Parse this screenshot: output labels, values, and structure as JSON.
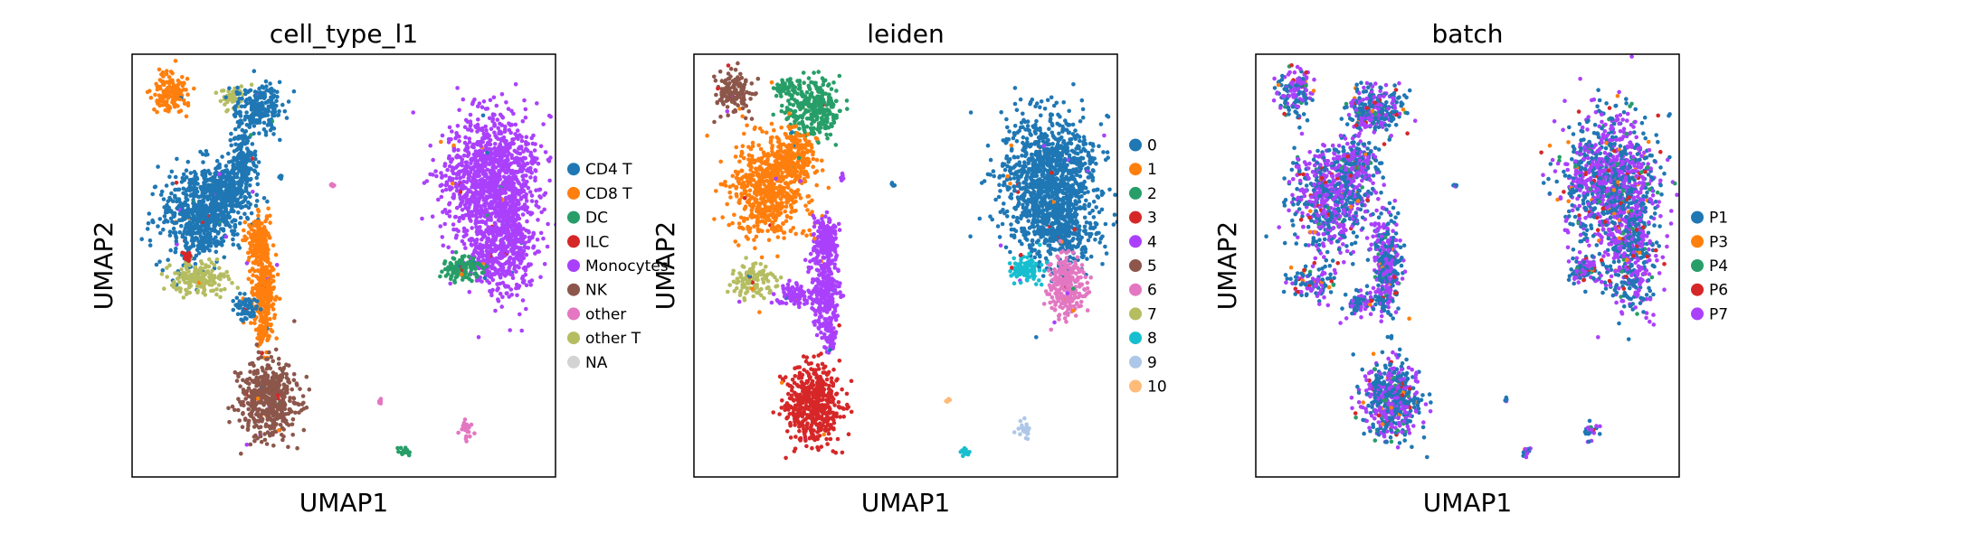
{
  "chart_data": [
    {
      "type": "scatter",
      "title": "cell_type_l1",
      "xlabel": "UMAP1",
      "ylabel": "UMAP2",
      "grid": false,
      "legend_position": "right",
      "legend": [
        {
          "label": "CD4 T",
          "color": "#1f77b4"
        },
        {
          "label": "CD8 T",
          "color": "#ff7f0e"
        },
        {
          "label": "DC",
          "color": "#279e68"
        },
        {
          "label": "ILC",
          "color": "#d62728"
        },
        {
          "label": "Monocytes",
          "color": "#aa40fc"
        },
        {
          "label": "NK",
          "color": "#8c564b"
        },
        {
          "label": "other",
          "color": "#e377c2"
        },
        {
          "label": "other T",
          "color": "#b5bd61"
        },
        {
          "label": "NA",
          "color": "#d3d3d3"
        }
      ],
      "clusters": [
        {
          "group": "CD8 T",
          "x": 0.09,
          "y": 0.91,
          "rx": 0.04,
          "ry": 0.045,
          "n": 150
        },
        {
          "group": "other T",
          "x": 0.23,
          "y": 0.9,
          "rx": 0.025,
          "ry": 0.025,
          "n": 40
        },
        {
          "group": "CD4 T",
          "x": 0.3,
          "y": 0.87,
          "rx": 0.05,
          "ry": 0.05,
          "n": 220
        },
        {
          "group": "CD4 T",
          "x": 0.26,
          "y": 0.74,
          "rx": 0.03,
          "ry": 0.09,
          "n": 200
        },
        {
          "group": "CD4 T",
          "x": 0.16,
          "y": 0.62,
          "rx": 0.085,
          "ry": 0.1,
          "n": 650
        },
        {
          "group": "CD4 T",
          "x": 0.22,
          "y": 0.68,
          "rx": 0.05,
          "ry": 0.06,
          "n": 250
        },
        {
          "group": "CD8 T",
          "x": 0.3,
          "y": 0.56,
          "rx": 0.025,
          "ry": 0.05,
          "n": 180
        },
        {
          "group": "CD8 T",
          "x": 0.31,
          "y": 0.44,
          "rx": 0.025,
          "ry": 0.08,
          "n": 260
        },
        {
          "group": "CD8 T",
          "x": 0.31,
          "y": 0.35,
          "rx": 0.015,
          "ry": 0.04,
          "n": 80
        },
        {
          "group": "CD4 T",
          "x": 0.27,
          "y": 0.4,
          "rx": 0.025,
          "ry": 0.025,
          "n": 70
        },
        {
          "group": "other T",
          "x": 0.16,
          "y": 0.47,
          "rx": 0.06,
          "ry": 0.035,
          "n": 160
        },
        {
          "group": "ILC",
          "x": 0.13,
          "y": 0.52,
          "rx": 0.015,
          "ry": 0.012,
          "n": 20
        },
        {
          "group": "NK",
          "x": 0.32,
          "y": 0.18,
          "rx": 0.06,
          "ry": 0.08,
          "n": 520
        },
        {
          "group": "Monocytes",
          "x": 0.85,
          "y": 0.7,
          "rx": 0.1,
          "ry": 0.14,
          "n": 1100
        },
        {
          "group": "Monocytes",
          "x": 0.89,
          "y": 0.55,
          "rx": 0.05,
          "ry": 0.12,
          "n": 420
        },
        {
          "group": "Monocytes",
          "x": 0.83,
          "y": 0.52,
          "rx": 0.04,
          "ry": 0.05,
          "n": 120
        },
        {
          "group": "DC",
          "x": 0.78,
          "y": 0.49,
          "rx": 0.035,
          "ry": 0.025,
          "n": 110
        },
        {
          "group": "CD4 T",
          "x": 0.35,
          "y": 0.71,
          "rx": 0.005,
          "ry": 0.008,
          "n": 6
        },
        {
          "group": "other",
          "x": 0.47,
          "y": 0.69,
          "rx": 0.006,
          "ry": 0.004,
          "n": 6
        },
        {
          "group": "other",
          "x": 0.59,
          "y": 0.18,
          "rx": 0.006,
          "ry": 0.006,
          "n": 6
        },
        {
          "group": "other",
          "x": 0.79,
          "y": 0.11,
          "rx": 0.015,
          "ry": 0.02,
          "n": 25
        },
        {
          "group": "DC",
          "x": 0.64,
          "y": 0.06,
          "rx": 0.01,
          "ry": 0.01,
          "n": 14
        }
      ]
    },
    {
      "type": "scatter",
      "title": "leiden",
      "xlabel": "UMAP1",
      "ylabel": "UMAP2",
      "grid": false,
      "legend_position": "right",
      "legend": [
        {
          "label": "0",
          "color": "#1f77b4"
        },
        {
          "label": "1",
          "color": "#ff7f0e"
        },
        {
          "label": "2",
          "color": "#279e68"
        },
        {
          "label": "3",
          "color": "#d62728"
        },
        {
          "label": "4",
          "color": "#aa40fc"
        },
        {
          "label": "5",
          "color": "#8c564b"
        },
        {
          "label": "6",
          "color": "#e377c2"
        },
        {
          "label": "7",
          "color": "#b5bd61"
        },
        {
          "label": "8",
          "color": "#17becf"
        },
        {
          "label": "9",
          "color": "#aec7e8"
        },
        {
          "label": "10",
          "color": "#ffbb78"
        }
      ],
      "clusters": [
        {
          "group": "5",
          "x": 0.09,
          "y": 0.91,
          "rx": 0.04,
          "ry": 0.045,
          "n": 150
        },
        {
          "group": "2",
          "x": 0.28,
          "y": 0.87,
          "rx": 0.06,
          "ry": 0.06,
          "n": 280
        },
        {
          "group": "2",
          "x": 0.22,
          "y": 0.92,
          "rx": 0.03,
          "ry": 0.02,
          "n": 50
        },
        {
          "group": "1",
          "x": 0.18,
          "y": 0.68,
          "rx": 0.08,
          "ry": 0.11,
          "n": 650
        },
        {
          "group": "1",
          "x": 0.24,
          "y": 0.76,
          "rx": 0.04,
          "ry": 0.05,
          "n": 180
        },
        {
          "group": "4",
          "x": 0.31,
          "y": 0.56,
          "rx": 0.025,
          "ry": 0.05,
          "n": 180
        },
        {
          "group": "4",
          "x": 0.31,
          "y": 0.44,
          "rx": 0.03,
          "ry": 0.08,
          "n": 280
        },
        {
          "group": "4",
          "x": 0.24,
          "y": 0.43,
          "rx": 0.04,
          "ry": 0.025,
          "n": 90
        },
        {
          "group": "4",
          "x": 0.32,
          "y": 0.34,
          "rx": 0.015,
          "ry": 0.04,
          "n": 60
        },
        {
          "group": "7",
          "x": 0.14,
          "y": 0.46,
          "rx": 0.04,
          "ry": 0.035,
          "n": 110
        },
        {
          "group": "3",
          "x": 0.28,
          "y": 0.17,
          "rx": 0.06,
          "ry": 0.08,
          "n": 520
        },
        {
          "group": "0",
          "x": 0.84,
          "y": 0.7,
          "rx": 0.1,
          "ry": 0.14,
          "n": 1100
        },
        {
          "group": "0",
          "x": 0.87,
          "y": 0.58,
          "rx": 0.07,
          "ry": 0.08,
          "n": 300
        },
        {
          "group": "6",
          "x": 0.88,
          "y": 0.45,
          "rx": 0.035,
          "ry": 0.065,
          "n": 260
        },
        {
          "group": "8",
          "x": 0.78,
          "y": 0.49,
          "rx": 0.035,
          "ry": 0.025,
          "n": 110
        },
        {
          "group": "4",
          "x": 0.35,
          "y": 0.71,
          "rx": 0.005,
          "ry": 0.008,
          "n": 6
        },
        {
          "group": "0",
          "x": 0.47,
          "y": 0.69,
          "rx": 0.006,
          "ry": 0.004,
          "n": 6
        },
        {
          "group": "10",
          "x": 0.6,
          "y": 0.18,
          "rx": 0.006,
          "ry": 0.006,
          "n": 6
        },
        {
          "group": "9",
          "x": 0.78,
          "y": 0.11,
          "rx": 0.015,
          "ry": 0.02,
          "n": 25
        },
        {
          "group": "8",
          "x": 0.64,
          "y": 0.06,
          "rx": 0.01,
          "ry": 0.01,
          "n": 14
        }
      ]
    },
    {
      "type": "scatter",
      "title": "batch",
      "xlabel": "UMAP1",
      "ylabel": "UMAP2",
      "grid": false,
      "legend_position": "right",
      "legend": [
        {
          "label": "P1",
          "color": "#1f77b4"
        },
        {
          "label": "P3",
          "color": "#ff7f0e"
        },
        {
          "label": "P4",
          "color": "#279e68"
        },
        {
          "label": "P6",
          "color": "#d62728"
        },
        {
          "label": "P7",
          "color": "#aa40fc"
        }
      ],
      "clusters": [
        {
          "group": "mixed",
          "x": 0.09,
          "y": 0.91,
          "rx": 0.04,
          "ry": 0.045,
          "n": 150
        },
        {
          "group": "mixed",
          "x": 0.28,
          "y": 0.87,
          "rx": 0.06,
          "ry": 0.06,
          "n": 280
        },
        {
          "group": "mixed",
          "x": 0.18,
          "y": 0.66,
          "rx": 0.085,
          "ry": 0.11,
          "n": 700
        },
        {
          "group": "mixed",
          "x": 0.24,
          "y": 0.74,
          "rx": 0.04,
          "ry": 0.05,
          "n": 160
        },
        {
          "group": "mixed",
          "x": 0.31,
          "y": 0.5,
          "rx": 0.03,
          "ry": 0.1,
          "n": 340
        },
        {
          "group": "mixed",
          "x": 0.25,
          "y": 0.41,
          "rx": 0.04,
          "ry": 0.03,
          "n": 80
        },
        {
          "group": "mixed",
          "x": 0.13,
          "y": 0.46,
          "rx": 0.05,
          "ry": 0.035,
          "n": 110
        },
        {
          "group": "mixed",
          "x": 0.32,
          "y": 0.18,
          "rx": 0.06,
          "ry": 0.08,
          "n": 520
        },
        {
          "group": "mixed",
          "x": 0.84,
          "y": 0.7,
          "rx": 0.1,
          "ry": 0.14,
          "n": 1100
        },
        {
          "group": "mixed",
          "x": 0.89,
          "y": 0.52,
          "rx": 0.05,
          "ry": 0.12,
          "n": 400
        },
        {
          "group": "mixed",
          "x": 0.78,
          "y": 0.49,
          "rx": 0.035,
          "ry": 0.025,
          "n": 100
        },
        {
          "group": "mixed",
          "x": 0.47,
          "y": 0.69,
          "rx": 0.006,
          "ry": 0.004,
          "n": 6
        },
        {
          "group": "mixed",
          "x": 0.59,
          "y": 0.18,
          "rx": 0.006,
          "ry": 0.006,
          "n": 6
        },
        {
          "group": "mixed",
          "x": 0.79,
          "y": 0.11,
          "rx": 0.015,
          "ry": 0.02,
          "n": 25
        },
        {
          "group": "mixed",
          "x": 0.64,
          "y": 0.06,
          "rx": 0.01,
          "ry": 0.01,
          "n": 14
        }
      ],
      "mix_weights": {
        "P1": 0.45,
        "P3": 0.02,
        "P4": 0.03,
        "P6": 0.04,
        "P7": 0.46
      }
    }
  ]
}
